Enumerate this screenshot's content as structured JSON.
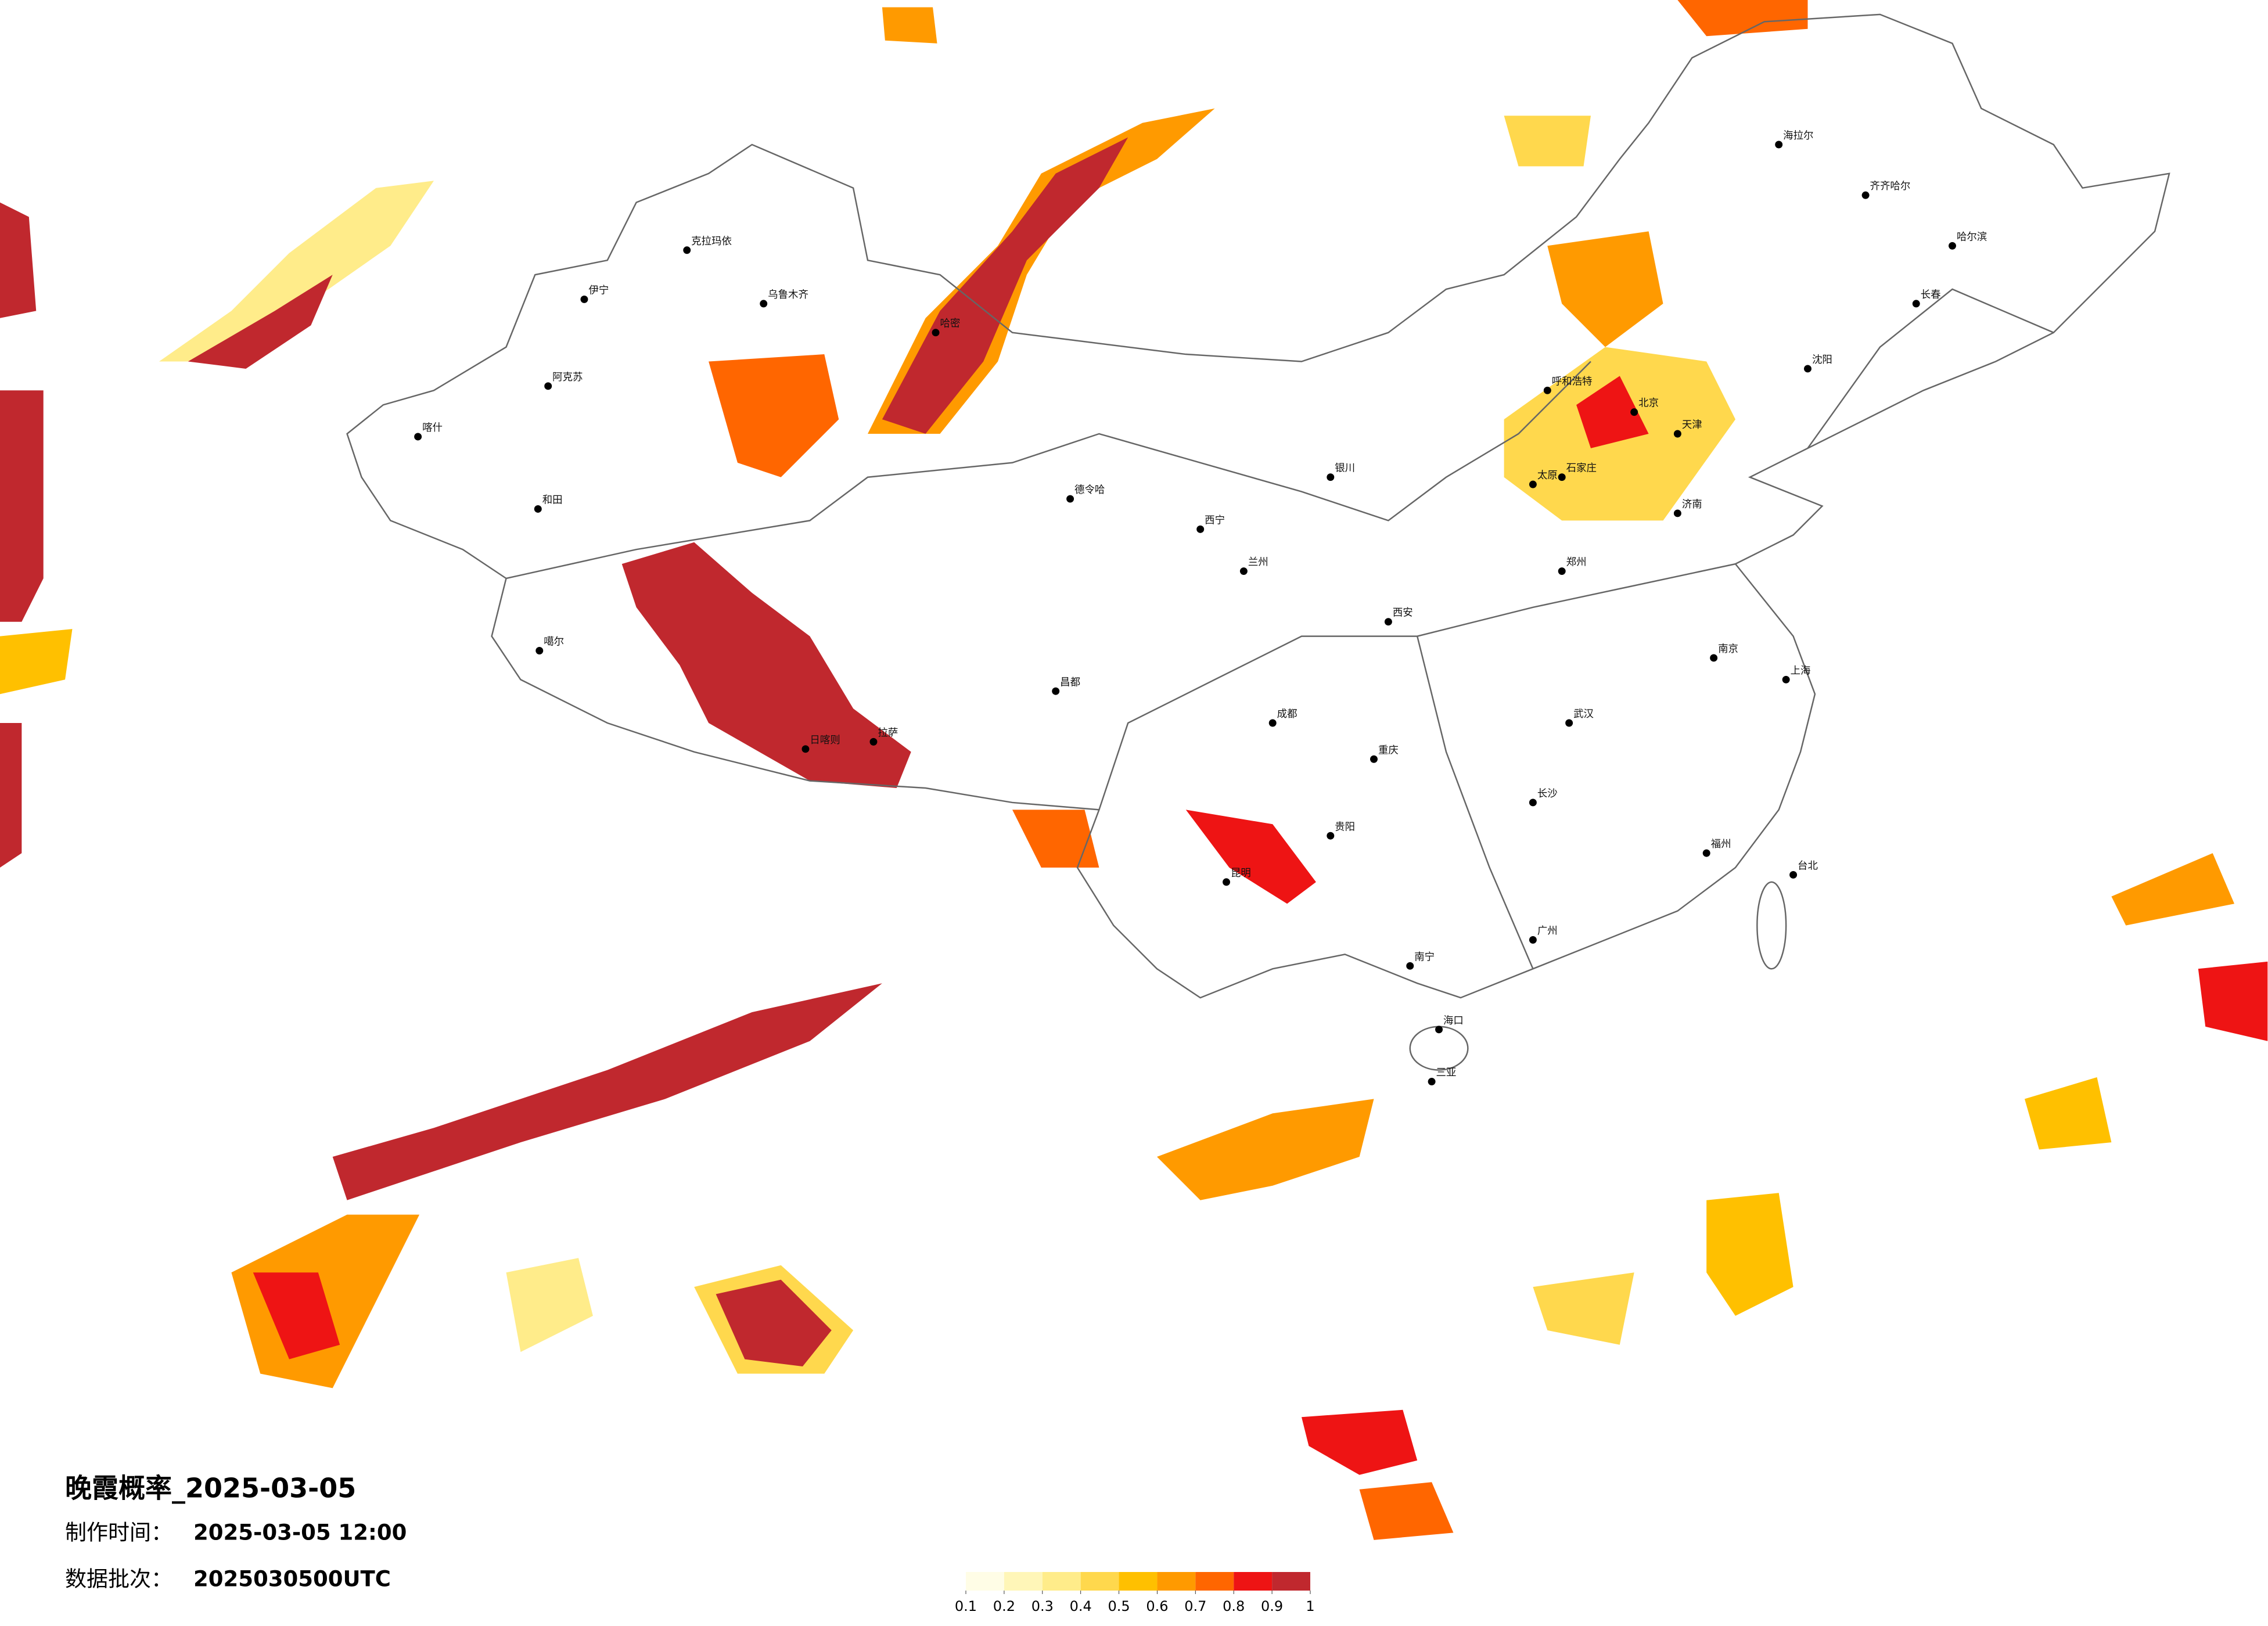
{
  "title": "晚霞概率_2025-03-05",
  "production": {
    "label": "制作时间：",
    "value": "2025-03-05 12:00"
  },
  "batch": {
    "label": "数据批次：",
    "value": "2025030500UTC"
  },
  "colorbar": {
    "ticks": [
      0.1,
      0.2,
      0.3,
      0.4,
      0.5,
      0.6,
      0.7,
      0.8,
      0.9,
      1
    ],
    "colors": [
      "#fffde6",
      "#fff6b8",
      "#ffec8a",
      "#ffd84d",
      "#ffc000",
      "#ff9a00",
      "#ff6600",
      "#ee1414",
      "#c0282e"
    ]
  },
  "cities": [
    "克拉玛依",
    "乌鲁木齐",
    "伊宁",
    "阿克苏",
    "和田",
    "喀什",
    "哈密",
    "德令哈",
    "噶尔",
    "拉萨",
    "日喀则",
    "昌都",
    "西宁",
    "兰州",
    "成都",
    "重庆",
    "昆明",
    "贵阳",
    "南宁",
    "广州",
    "海口",
    "三亚",
    "福州",
    "台北",
    "上海",
    "南京",
    "武汉",
    "长沙",
    "郑州",
    "西安",
    "太原",
    "北京",
    "天津",
    "石家庄",
    "济南",
    "沈阳",
    "长春",
    "哈尔滨",
    "呼和浩特",
    "银川",
    "齐齐哈尔",
    "海拉尔"
  ]
}
